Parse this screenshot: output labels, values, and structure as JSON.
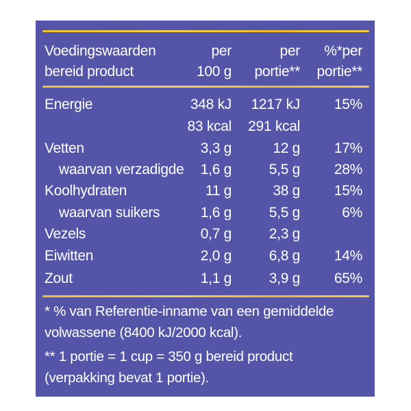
{
  "header": {
    "line1": {
      "label": "Voedingswaarden",
      "per100": "per",
      "perPortion": "per",
      "percent": "%*per"
    },
    "line2": {
      "label": "bereid product",
      "per100": "100 g",
      "perPortion": "portie**",
      "percent": "portie**"
    }
  },
  "rows": [
    {
      "label": "Energie",
      "per100": "348 kJ",
      "perPortion": "1217 kJ",
      "percent": "15%"
    },
    {
      "label": "",
      "per100": "83 kcal",
      "perPortion": "291 kcal",
      "percent": ""
    },
    {
      "label": "Vetten",
      "per100": "3,3 g",
      "perPortion": "12 g",
      "percent": "17%"
    },
    {
      "label": "waarvan verzadigde",
      "per100": "1,6 g",
      "perPortion": "5,5 g",
      "percent": "28%"
    },
    {
      "label": "Koolhydraten",
      "per100": "11 g",
      "perPortion": "38 g",
      "percent": "15%"
    },
    {
      "label": "waarvan suikers",
      "per100": "1,6 g",
      "perPortion": "5,5 g",
      "percent": "6%"
    },
    {
      "label": "Vezels",
      "per100": "0,7 g",
      "perPortion": "2,3 g",
      "percent": ""
    },
    {
      "label": "Eiwitten",
      "per100": "2,0 g",
      "perPortion": "6,8 g",
      "percent": "14%"
    },
    {
      "label": "Zout",
      "per100": "1,1 g",
      "perPortion": "3,9 g",
      "percent": "65%"
    }
  ],
  "footnotes": [
    "* % van Referentie-inname van een gemiddelde",
    "volwassene (8400 kJ/2000 kcal).",
    "** 1 portie = 1 cup = 350 g bereid product",
    "(verpakking bevat 1 portie)."
  ],
  "colors": {
    "panel_background": "#5455a8",
    "text": "#ffffff",
    "divider": "#f2c02c"
  }
}
